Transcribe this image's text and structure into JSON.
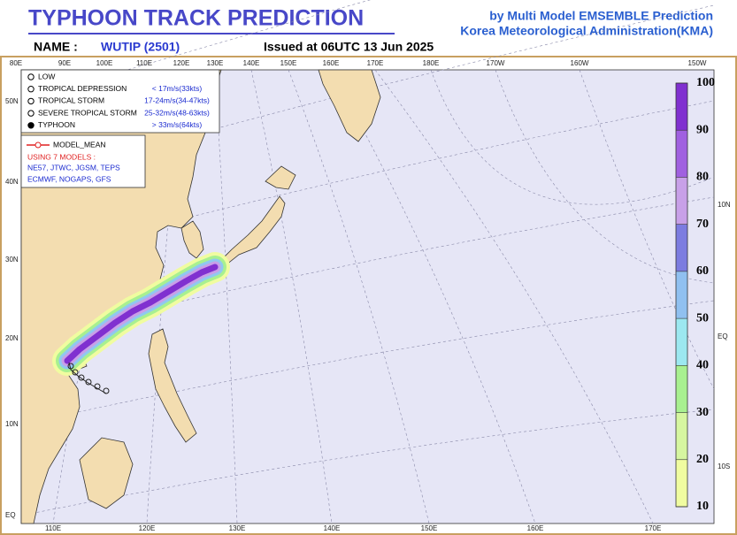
{
  "header": {
    "title": "TYPHOON  TRACK  PREDICTION",
    "credit_line1": "by Multi Model EMSEMBLE Prediction",
    "credit_line2": "Korea Meteorological Administration(KMA)",
    "name_label": "NAME :",
    "name_value": "WUTIP (2501)",
    "issued": "Issued at  06UTC 13 Jun 2025"
  },
  "map": {
    "top_lon_labels": [
      "80E",
      "90E",
      "100E",
      "110E",
      "120E",
      "130E",
      "140E",
      "150E",
      "160E",
      "170E",
      "180E",
      "170W",
      "160W",
      "150W"
    ],
    "left_lat_labels": [
      "50N",
      "40N",
      "30N",
      "20N",
      "10N",
      "EQ"
    ],
    "bottom_lon_labels": [
      "110E",
      "120E",
      "130E",
      "140E",
      "150E",
      "160E",
      "170E"
    ],
    "right_lat_labels": [
      "10N",
      "EQ",
      "10S"
    ]
  },
  "legend": {
    "items": [
      {
        "label": "LOW"
      },
      {
        "label": "TROPICAL DEPRESSION",
        "range": "< 17m/s(33kts)"
      },
      {
        "label": "TROPICAL STORM",
        "range": "17-24m/s(34-47kts)"
      },
      {
        "label": "SEVERE TROPICAL STORM",
        "range": "25-32m/s(48-63kts)"
      },
      {
        "label": "TYPHOON",
        "range": "> 33m/s(64kts)"
      }
    ]
  },
  "models": {
    "mean_label": "MODEL_MEAN",
    "heading": "USING 7 MODELS :",
    "line1": "NE57, JTWC, JGSM, TEPS",
    "line2": "ECMWF, NOGAPS, GFS"
  },
  "colorbar": {
    "ticks": [
      10,
      20,
      30,
      40,
      50,
      60,
      70,
      80,
      90,
      100
    ],
    "colors": [
      "#f0fca0",
      "#d6f6a0",
      "#a8f090",
      "#9ce8f0",
      "#90c0f0",
      "#7c7ce0",
      "#c8a0e8",
      "#a060e0",
      "#8030d0"
    ]
  }
}
